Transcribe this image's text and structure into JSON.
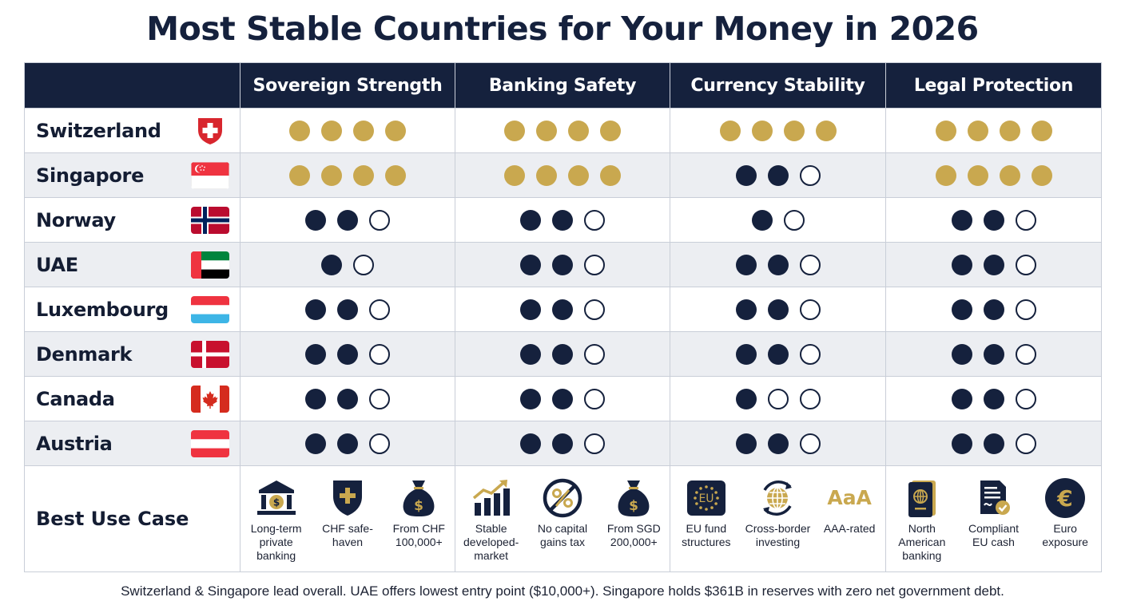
{
  "title": "Most Stable Countries for Your Money in 2026",
  "columns": [
    "Sovereign Strength",
    "Banking Safety",
    "Currency Stability",
    "Legal Protection"
  ],
  "colors": {
    "navy": "#15213d",
    "gold": "#c9a84f"
  },
  "rating_key": {
    "gold": "gold filled dot",
    "full": "navy filled dot",
    "empty": "navy outline dot"
  },
  "rows": [
    {
      "country": "Switzerland",
      "flag": "switzerland-flag-icon",
      "ratings": [
        [
          "gold",
          "gold",
          "gold",
          "gold"
        ],
        [
          "gold",
          "gold",
          "gold",
          "gold"
        ],
        [
          "gold",
          "gold",
          "gold",
          "gold"
        ],
        [
          "gold",
          "gold",
          "gold",
          "gold"
        ]
      ]
    },
    {
      "country": "Singapore",
      "flag": "singapore-flag-icon",
      "ratings": [
        [
          "gold",
          "gold",
          "gold",
          "gold"
        ],
        [
          "gold",
          "gold",
          "gold",
          "gold"
        ],
        [
          "full",
          "full",
          "empty"
        ],
        [
          "gold",
          "gold",
          "gold",
          "gold"
        ]
      ]
    },
    {
      "country": "Norway",
      "flag": "norway-flag-icon",
      "ratings": [
        [
          "full",
          "full",
          "empty"
        ],
        [
          "full",
          "full",
          "empty"
        ],
        [
          "full",
          "empty"
        ],
        [
          "full",
          "full",
          "empty"
        ]
      ]
    },
    {
      "country": "UAE",
      "flag": "uae-flag-icon",
      "ratings": [
        [
          "full",
          "empty"
        ],
        [
          "full",
          "full",
          "empty"
        ],
        [
          "full",
          "full",
          "empty"
        ],
        [
          "full",
          "full",
          "empty"
        ]
      ]
    },
    {
      "country": "Luxembourg",
      "flag": "luxembourg-flag-icon",
      "ratings": [
        [
          "full",
          "full",
          "empty"
        ],
        [
          "full",
          "full",
          "empty"
        ],
        [
          "full",
          "full",
          "empty"
        ],
        [
          "full",
          "full",
          "empty"
        ]
      ]
    },
    {
      "country": "Denmark",
      "flag": "denmark-flag-icon",
      "ratings": [
        [
          "full",
          "full",
          "empty"
        ],
        [
          "full",
          "full",
          "empty"
        ],
        [
          "full",
          "full",
          "empty"
        ],
        [
          "full",
          "full",
          "empty"
        ]
      ]
    },
    {
      "country": "Canada",
      "flag": "canada-flag-icon",
      "ratings": [
        [
          "full",
          "full",
          "empty"
        ],
        [
          "full",
          "full",
          "empty"
        ],
        [
          "full",
          "empty",
          "empty"
        ],
        [
          "full",
          "full",
          "empty"
        ]
      ]
    },
    {
      "country": "Austria",
      "flag": "austria-flag-icon",
      "ratings": [
        [
          "full",
          "full",
          "empty"
        ],
        [
          "full",
          "full",
          "empty"
        ],
        [
          "full",
          "full",
          "empty"
        ],
        [
          "full",
          "full",
          "empty"
        ]
      ]
    }
  ],
  "use_case": {
    "label": "Best Use Case",
    "groups": [
      [
        {
          "icon": "bank-icon",
          "text": "Long-term private banking"
        },
        {
          "icon": "shield-plus-icon",
          "text": "CHF safe-haven"
        },
        {
          "icon": "money-bag-icon",
          "text": "From CHF 100,000+"
        }
      ],
      [
        {
          "icon": "growth-chart-icon",
          "text": "Stable developed-market"
        },
        {
          "icon": "no-percent-icon",
          "text": "No capital gains tax"
        },
        {
          "icon": "money-bag-icon",
          "text": "From SGD 200,000+"
        }
      ],
      [
        {
          "icon": "eu-flag-icon",
          "icon_text": "EU",
          "text": "EU fund structures"
        },
        {
          "icon": "globe-exchange-icon",
          "text": "Cross-border investing"
        },
        {
          "icon": "aaa-rating-icon",
          "icon_text": "AaA",
          "text": "AAA-rated"
        }
      ],
      [
        {
          "icon": "passport-icon",
          "text": "North American banking"
        },
        {
          "icon": "certified-document-icon",
          "text": "Compliant EU cash"
        },
        {
          "icon": "euro-coin-icon",
          "icon_text": "€",
          "text": "Euro exposure"
        }
      ]
    ]
  },
  "footer": "Switzerland & Singapore lead overall. UAE offers lowest entry point ($10,000+). Singapore holds $361B in reserves with zero net government debt."
}
